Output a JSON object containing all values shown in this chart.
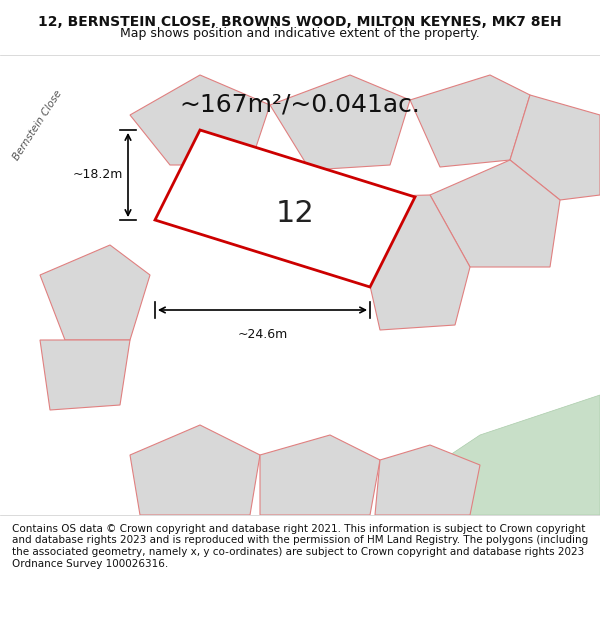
{
  "title_line1": "12, BERNSTEIN CLOSE, BROWNS WOOD, MILTON KEYNES, MK7 8EH",
  "title_line2": "Map shows position and indicative extent of the property.",
  "area_text": "~167m²/~0.041ac.",
  "label_number": "12",
  "dim_width": "~24.6m",
  "dim_height": "~18.2m",
  "footer_text": "Contains OS data © Crown copyright and database right 2021. This information is subject to Crown copyright and database rights 2023 and is reproduced with the permission of HM Land Registry. The polygons (including the associated geometry, namely x, y co-ordinates) are subject to Crown copyright and database rights 2023 Ordnance Survey 100026316.",
  "bg_map_color": "#f0ede8",
  "road_color": "#ffffff",
  "plot_fill_color": "#ffffff",
  "plot_outline_color": "#cc0000",
  "neighbor_fill_color": "#d8d8d8",
  "neighbor_outline_color": "#e08080",
  "green_area_color": "#c8dfc8",
  "street_label": "Bernstein Close",
  "title_fontsize": 10,
  "subtitle_fontsize": 9,
  "footer_fontsize": 7.5,
  "area_fontsize": 18,
  "number_fontsize": 22
}
